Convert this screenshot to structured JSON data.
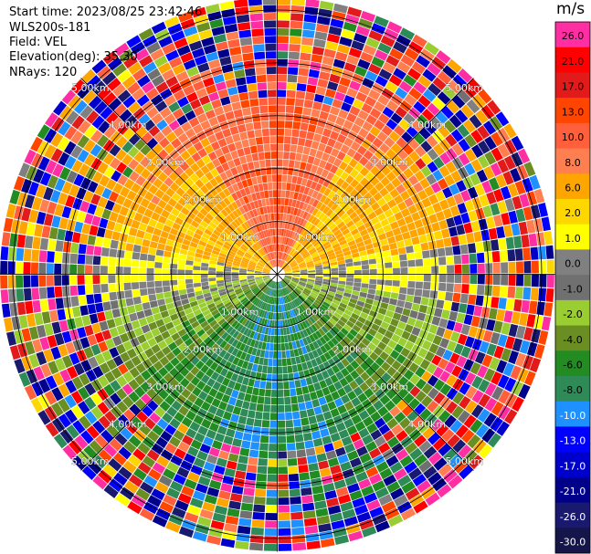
{
  "header": {
    "start_time": "Start time: 2023/08/25 23:42:46",
    "instrument": "WLS200s-181",
    "field": "Field: VEL",
    "elevation": "Elevation(deg): 35.30",
    "nrays": "NRays: 120"
  },
  "chart_data": {
    "type": "heatmap",
    "projection": "polar-ppi",
    "field": "VEL",
    "units": "m/s",
    "n_rays": 120,
    "range_rings_km": [
      1.0,
      2.0,
      3.0,
      4.0,
      5.0
    ],
    "ring_label_text": [
      "1.00km",
      "2.00km",
      "3.00km",
      "4.00km",
      "5.00km"
    ],
    "max_range_km": 5.25,
    "colorbar": {
      "ticks": [
        "26.0",
        "21.0",
        "17.0",
        "13.0",
        "10.0",
        "8.0",
        "6.0",
        "2.0",
        "1.0",
        "0.0",
        "-1.0",
        "-2.0",
        "-4.0",
        "-6.0",
        "-8.0",
        "-10.0",
        "-13.0",
        "-17.0",
        "-21.0",
        "-26.0",
        "-30.0"
      ],
      "colors": [
        "#ff2fa3",
        "#ff0000",
        "#e21a1a",
        "#ff4500",
        "#ff5f3a",
        "#ff7f50",
        "#ffa500",
        "#ffd700",
        "#ffff00",
        "#808080",
        "#707070",
        "#9acd32",
        "#6b8e23",
        "#228b22",
        "#2e8b57",
        "#1e90ff",
        "#0000ff",
        "#0000cd",
        "#00008b",
        "#191970",
        "#15154a"
      ]
    }
  }
}
